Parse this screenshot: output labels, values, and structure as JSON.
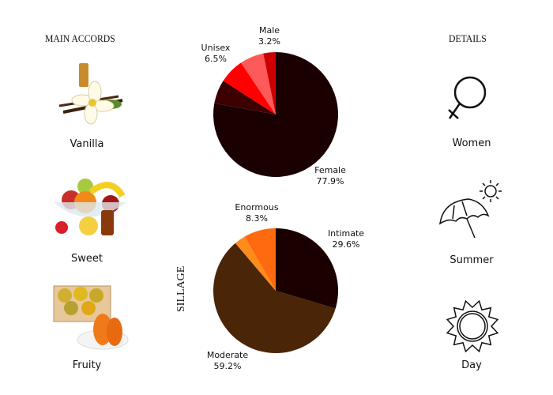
{
  "left": {
    "title": "MAIN ACCORDS",
    "accords": [
      {
        "label": "Vanilla",
        "icon": "vanilla-flower-image"
      },
      {
        "label": "Sweet",
        "icon": "fruit-bowl-image"
      },
      {
        "label": "Fruity",
        "icon": "papaya-crate-image"
      }
    ]
  },
  "right": {
    "title": "DETAILS",
    "items": [
      {
        "label": "Women",
        "icon": "female-symbol-icon"
      },
      {
        "label": "Summer",
        "icon": "umbrella-sun-icon"
      },
      {
        "label": "Day",
        "icon": "sun-icon"
      }
    ]
  },
  "chart_data": [
    {
      "type": "pie",
      "title": "",
      "slices": [
        {
          "label": "Female",
          "value": 77.9,
          "text": "77.9%",
          "color": "#1a0000"
        },
        {
          "label": "",
          "value": 6.2,
          "text": "",
          "color": "#3d0000"
        },
        {
          "label": "Unisex",
          "value": 6.5,
          "text": "6.5%",
          "color": "#ff0000"
        },
        {
          "label": "",
          "value": 6.2,
          "text": "",
          "color": "#ff5a5a"
        },
        {
          "label": "Male",
          "value": 3.2,
          "text": "3.2%",
          "color": "#cc0000"
        }
      ]
    },
    {
      "type": "pie",
      "title": "SILLAGE",
      "slices": [
        {
          "label": "Intimate",
          "value": 29.6,
          "text": "29.6%",
          "color": "#1a0000"
        },
        {
          "label": "Moderate",
          "value": 59.2,
          "text": "59.2%",
          "color": "#4a2508"
        },
        {
          "label": "",
          "value": 2.9,
          "text": "",
          "color": "#ff8c1a"
        },
        {
          "label": "Enormous",
          "value": 8.3,
          "text": "8.3%",
          "color": "#ff6a10"
        }
      ]
    }
  ]
}
